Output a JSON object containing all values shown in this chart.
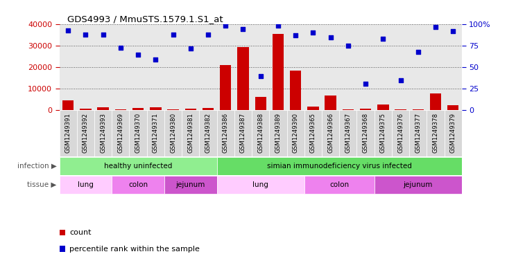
{
  "title": "GDS4993 / MmuSTS.1579.1.S1_at",
  "samples": [
    "GSM1249391",
    "GSM1249392",
    "GSM1249393",
    "GSM1249369",
    "GSM1249370",
    "GSM1249371",
    "GSM1249380",
    "GSM1249381",
    "GSM1249382",
    "GSM1249386",
    "GSM1249387",
    "GSM1249388",
    "GSM1249389",
    "GSM1249390",
    "GSM1249365",
    "GSM1249366",
    "GSM1249367",
    "GSM1249368",
    "GSM1249375",
    "GSM1249376",
    "GSM1249377",
    "GSM1249378",
    "GSM1249379"
  ],
  "counts": [
    4500,
    700,
    1400,
    300,
    900,
    1200,
    400,
    600,
    900,
    21000,
    29500,
    6200,
    35500,
    18500,
    1800,
    6800,
    400,
    600,
    2600,
    400,
    300,
    7800,
    2200
  ],
  "percentiles": [
    93,
    88,
    88,
    73,
    65,
    59,
    88,
    72,
    88,
    99,
    95,
    40,
    99,
    87,
    91,
    85,
    75,
    31,
    83,
    35,
    68,
    97,
    92
  ],
  "bar_color": "#cc0000",
  "dot_color": "#0000cc",
  "ylim_left": [
    0,
    40000
  ],
  "ylim_right": [
    0,
    100
  ],
  "yticks_left": [
    0,
    10000,
    20000,
    30000,
    40000
  ],
  "yticks_right": [
    0,
    25,
    50,
    75,
    100
  ],
  "infection_groups": [
    {
      "label": "healthy uninfected",
      "start": 0,
      "end": 8,
      "color": "#90ee90"
    },
    {
      "label": "simian immunodeficiency virus infected",
      "start": 9,
      "end": 22,
      "color": "#66dd66"
    }
  ],
  "tissue_groups": [
    {
      "label": "lung",
      "start": 0,
      "end": 2,
      "color": "#ffccff"
    },
    {
      "label": "colon",
      "start": 3,
      "end": 5,
      "color": "#ee82ee"
    },
    {
      "label": "jejunum",
      "start": 6,
      "end": 8,
      "color": "#cc55cc"
    },
    {
      "label": "lung",
      "start": 9,
      "end": 13,
      "color": "#ffccff"
    },
    {
      "label": "colon",
      "start": 14,
      "end": 17,
      "color": "#ee82ee"
    },
    {
      "label": "jejunum",
      "start": 18,
      "end": 22,
      "color": "#cc55cc"
    }
  ],
  "infection_label": "infection",
  "tissue_label": "tissue",
  "legend_count_label": "count",
  "legend_pct_label": "percentile rank within the sample",
  "bar_color_red": "#cc0000",
  "dot_color_blue": "#0000cc",
  "bg_color": "#d8d8d8",
  "chart_bg": "#e8e8e8",
  "grid_color": "#555555"
}
